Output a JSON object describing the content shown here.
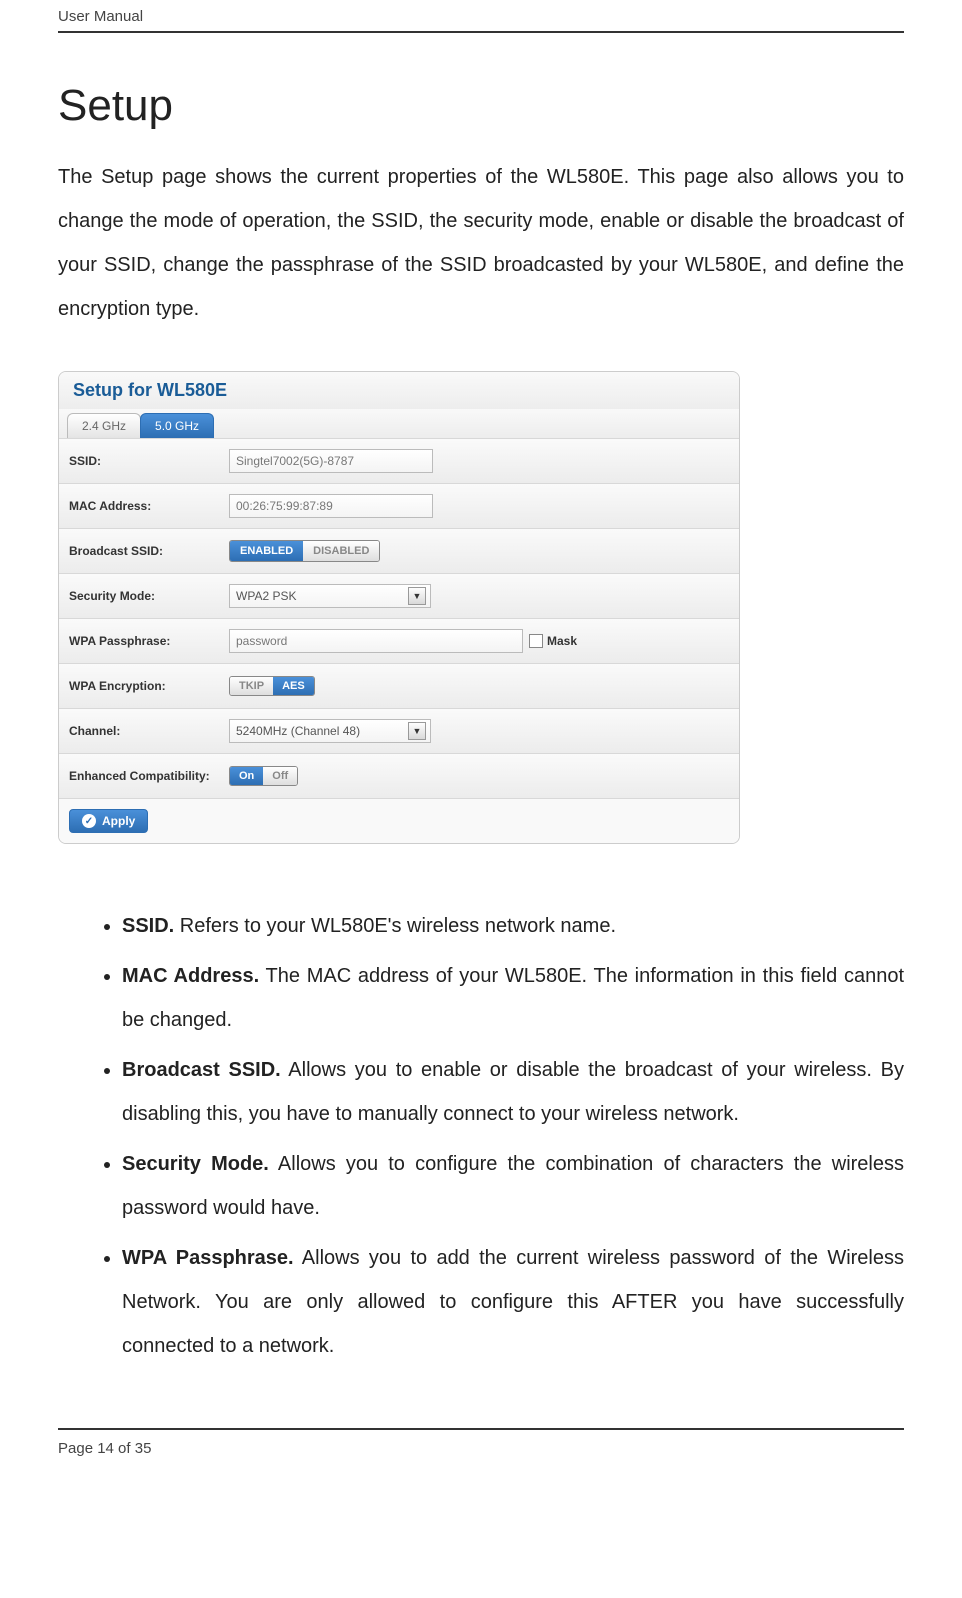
{
  "header": {
    "text": "User Manual"
  },
  "title": "Setup",
  "intro": "The Setup page shows the current properties of the WL580E. This page also allows you to change the mode of operation, the SSID, the security mode, enable or disable the broadcast of your SSID, change the passphrase of the SSID broadcasted by your WL580E, and define the encryption type.",
  "panel": {
    "title": "Setup for WL580E",
    "tabs": {
      "inactive": "2.4 GHz",
      "active": "5.0 GHz"
    },
    "rows": {
      "ssid": {
        "label": "SSID:",
        "value": "Singtel7002(5G)-8787"
      },
      "mac": {
        "label": "MAC Address:",
        "value": "00:26:75:99:87:89"
      },
      "bcast": {
        "label": "Broadcast SSID:",
        "enabled": "ENABLED",
        "disabled": "DISABLED"
      },
      "secmode": {
        "label": "Security Mode:",
        "value": "WPA2 PSK"
      },
      "pass": {
        "label": "WPA Passphrase:",
        "value": "password",
        "mask": "Mask"
      },
      "enc": {
        "label": "WPA Encryption:",
        "tkip": "TKIP",
        "aes": "AES"
      },
      "chan": {
        "label": "Channel:",
        "value": "5240MHz (Channel 48)"
      },
      "compat": {
        "label": "Enhanced Compatibility:",
        "on": "On",
        "off": "Off"
      }
    },
    "apply": "Apply"
  },
  "bullets": {
    "ssid": {
      "term": "SSID.",
      "text": " Refers to your WL580E's wireless network name."
    },
    "mac": {
      "term": "MAC Address.",
      "text": " The MAC address of your WL580E. The information in this field cannot be changed."
    },
    "bcast": {
      "term": "Broadcast SSID.",
      "text": " Allows you to enable or disable the broadcast of your wireless. By disabling this, you have to manually connect to your wireless network."
    },
    "sec": {
      "term": "Security Mode.",
      "text": " Allows you to configure the combination of characters the wireless password would have."
    },
    "wpa": {
      "term": "WPA Passphrase.",
      "text": " Allows you to add the current wireless password of the Wireless Network. You are only allowed to configure this AFTER you have successfully connected to a network."
    }
  },
  "footer": {
    "page": "Page 14 of 35"
  },
  "colors": {
    "accent": "#2d6eb3",
    "accent_light": "#4a90d9",
    "rule": "#333333",
    "row_border": "#d8d8d8"
  }
}
